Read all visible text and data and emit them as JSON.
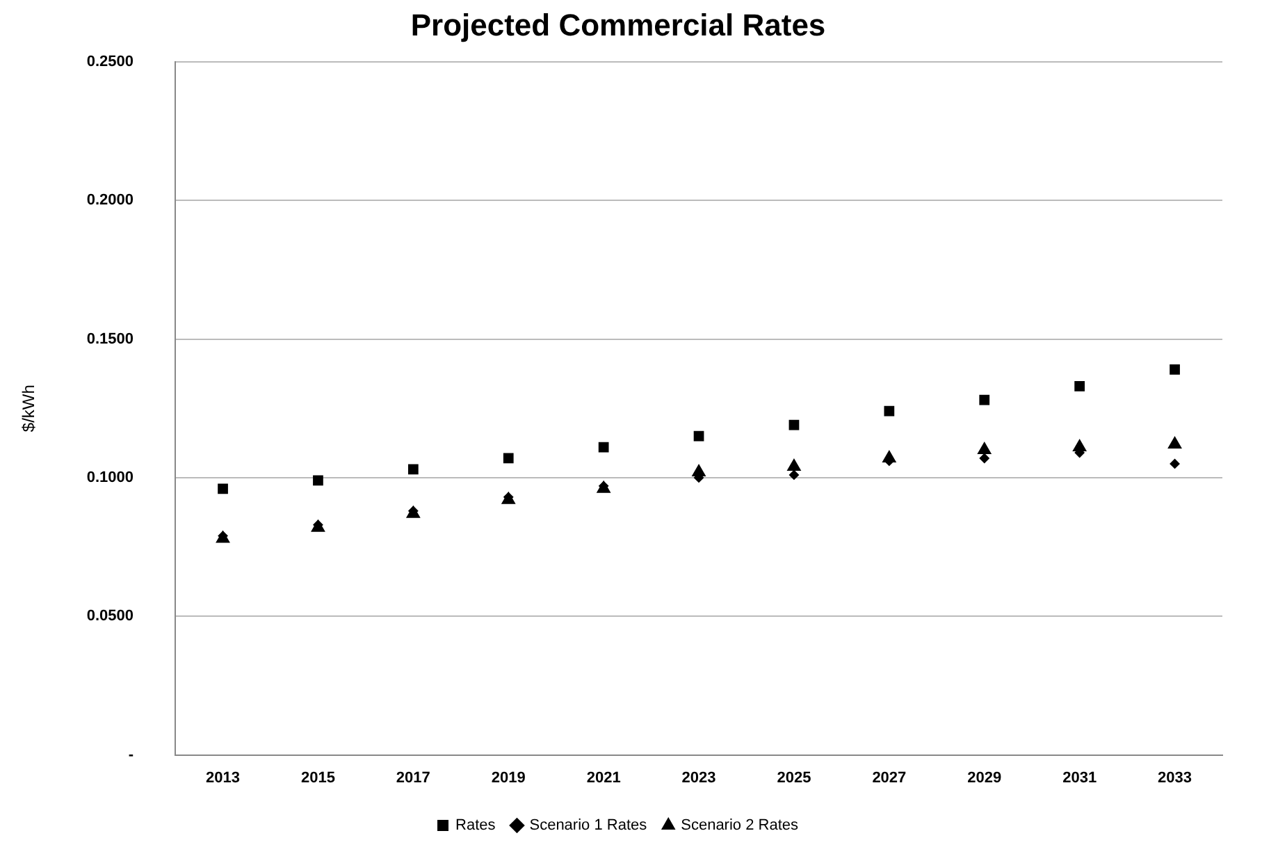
{
  "chart_data": {
    "type": "scatter",
    "title": "Projected Commercial Rates",
    "ylabel": "$/kWh",
    "categories": [
      "2013",
      "2015",
      "2017",
      "2019",
      "2021",
      "2023",
      "2025",
      "2027",
      "2029",
      "2031",
      "2033"
    ],
    "series": [
      {
        "name": "Rates",
        "color": "#000000",
        "marker": "square",
        "values": [
          0.096,
          0.099,
          0.103,
          0.107,
          0.111,
          0.115,
          0.119,
          0.124,
          0.128,
          0.133,
          0.139
        ]
      },
      {
        "name": "Scenario 1 Rates",
        "color": "#000000",
        "marker": "diamond",
        "values": [
          0.079,
          0.083,
          0.088,
          0.093,
          0.097,
          0.1,
          0.101,
          0.106,
          0.107,
          0.109,
          0.105
        ]
      },
      {
        "name": "Scenario 2 Rates",
        "color": "#000000",
        "marker": "triangle",
        "values": [
          0.078,
          0.082,
          0.087,
          0.092,
          0.096,
          0.102,
          0.104,
          0.107,
          0.11,
          0.111,
          0.112
        ]
      }
    ],
    "ylim": [
      0,
      0.25
    ],
    "yticks": [
      {
        "value": 0,
        "label": "-"
      },
      {
        "value": 0.05,
        "label": "0.0500"
      },
      {
        "value": 0.1,
        "label": "0.1000"
      },
      {
        "value": 0.15,
        "label": "0.1500"
      },
      {
        "value": 0.2,
        "label": "0.2000"
      },
      {
        "value": 0.25,
        "label": "0.2500"
      }
    ],
    "grid": "y",
    "legend": "bottom"
  }
}
